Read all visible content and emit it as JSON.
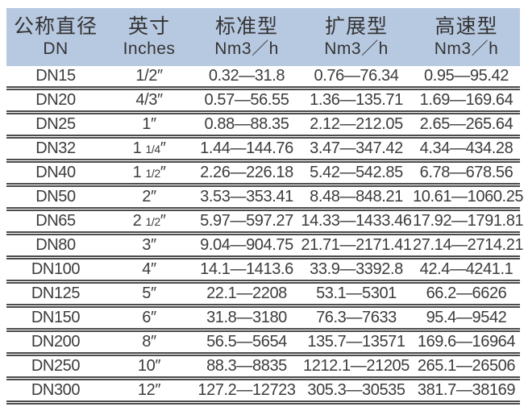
{
  "colors": {
    "header_bg": "#b7c9e1",
    "text": "#3c3c3c",
    "rule_line": "#4c4c4c"
  },
  "table": {
    "columns": [
      {
        "zh": "公称直径",
        "sub": "DN"
      },
      {
        "zh": "英寸",
        "sub": "Inches"
      },
      {
        "zh": "标准型",
        "sub": "Nm3／h"
      },
      {
        "zh": "扩展型",
        "sub": "Nm3／h"
      },
      {
        "zh": "高速型",
        "sub": "Nm3／h"
      }
    ],
    "rows": [
      {
        "dn": "DN15",
        "inches": "1/2″",
        "standard": "0.32—31.8",
        "extended": "0.76—76.34",
        "high_speed": "0.95—95.42"
      },
      {
        "dn": "DN20",
        "inches": "4/3″",
        "standard": "0.57—56.55",
        "extended": "1.36—135.71",
        "high_speed": "1.69—169.64"
      },
      {
        "dn": "DN25",
        "inches": "1″",
        "standard": "0.88—88.35",
        "extended": "2.12—212.05",
        "high_speed": "2.65—265.64"
      },
      {
        "dn": "DN32",
        "inches": "1 1/4″",
        "standard": "1.44—144.76",
        "extended": "3.47—347.42",
        "high_speed": "4.34—434.28"
      },
      {
        "dn": "DN40",
        "inches": "1 1/2″",
        "standard": "2.26—226.18",
        "extended": "5.42—542.85",
        "high_speed": "6.78—678.56"
      },
      {
        "dn": "DN50",
        "inches": "2″",
        "standard": "3.53—353.41",
        "extended": "8.48—848.21",
        "high_speed": "10.61—1060.25"
      },
      {
        "dn": "DN65",
        "inches": "2 1/2″",
        "standard": "5.97—597.27",
        "extended": "14.33—1433.46",
        "high_speed": "17.92—1791.81"
      },
      {
        "dn": "DN80",
        "inches": "3″",
        "standard": "9.04—904.75",
        "extended": "21.71—2171.41",
        "high_speed": "27.14—2714.21"
      },
      {
        "dn": "DN100",
        "inches": "4″",
        "standard": "14.1—1413.6",
        "extended": "33.9—3392.8",
        "high_speed": "42.4—4241.1"
      },
      {
        "dn": "DN125",
        "inches": "5″",
        "standard": "22.1—2208",
        "extended": "53.1—5301",
        "high_speed": "66.2—6626"
      },
      {
        "dn": "DN150",
        "inches": "6″",
        "standard": "31.8—3180",
        "extended": "76.3—7633",
        "high_speed": "95.4—9542"
      },
      {
        "dn": "DN200",
        "inches": "8″",
        "standard": "56.5—5654",
        "extended": "135.7—13571",
        "high_speed": "169.6—16964"
      },
      {
        "dn": "DN250",
        "inches": "10″",
        "standard": "88.3—8835",
        "extended": "1212.1—21205",
        "high_speed": "265.1—26506"
      },
      {
        "dn": "DN300",
        "inches": "12″",
        "standard": "127.2—12723",
        "extended": "305.3—30535",
        "high_speed": "381.7—38169"
      }
    ]
  }
}
